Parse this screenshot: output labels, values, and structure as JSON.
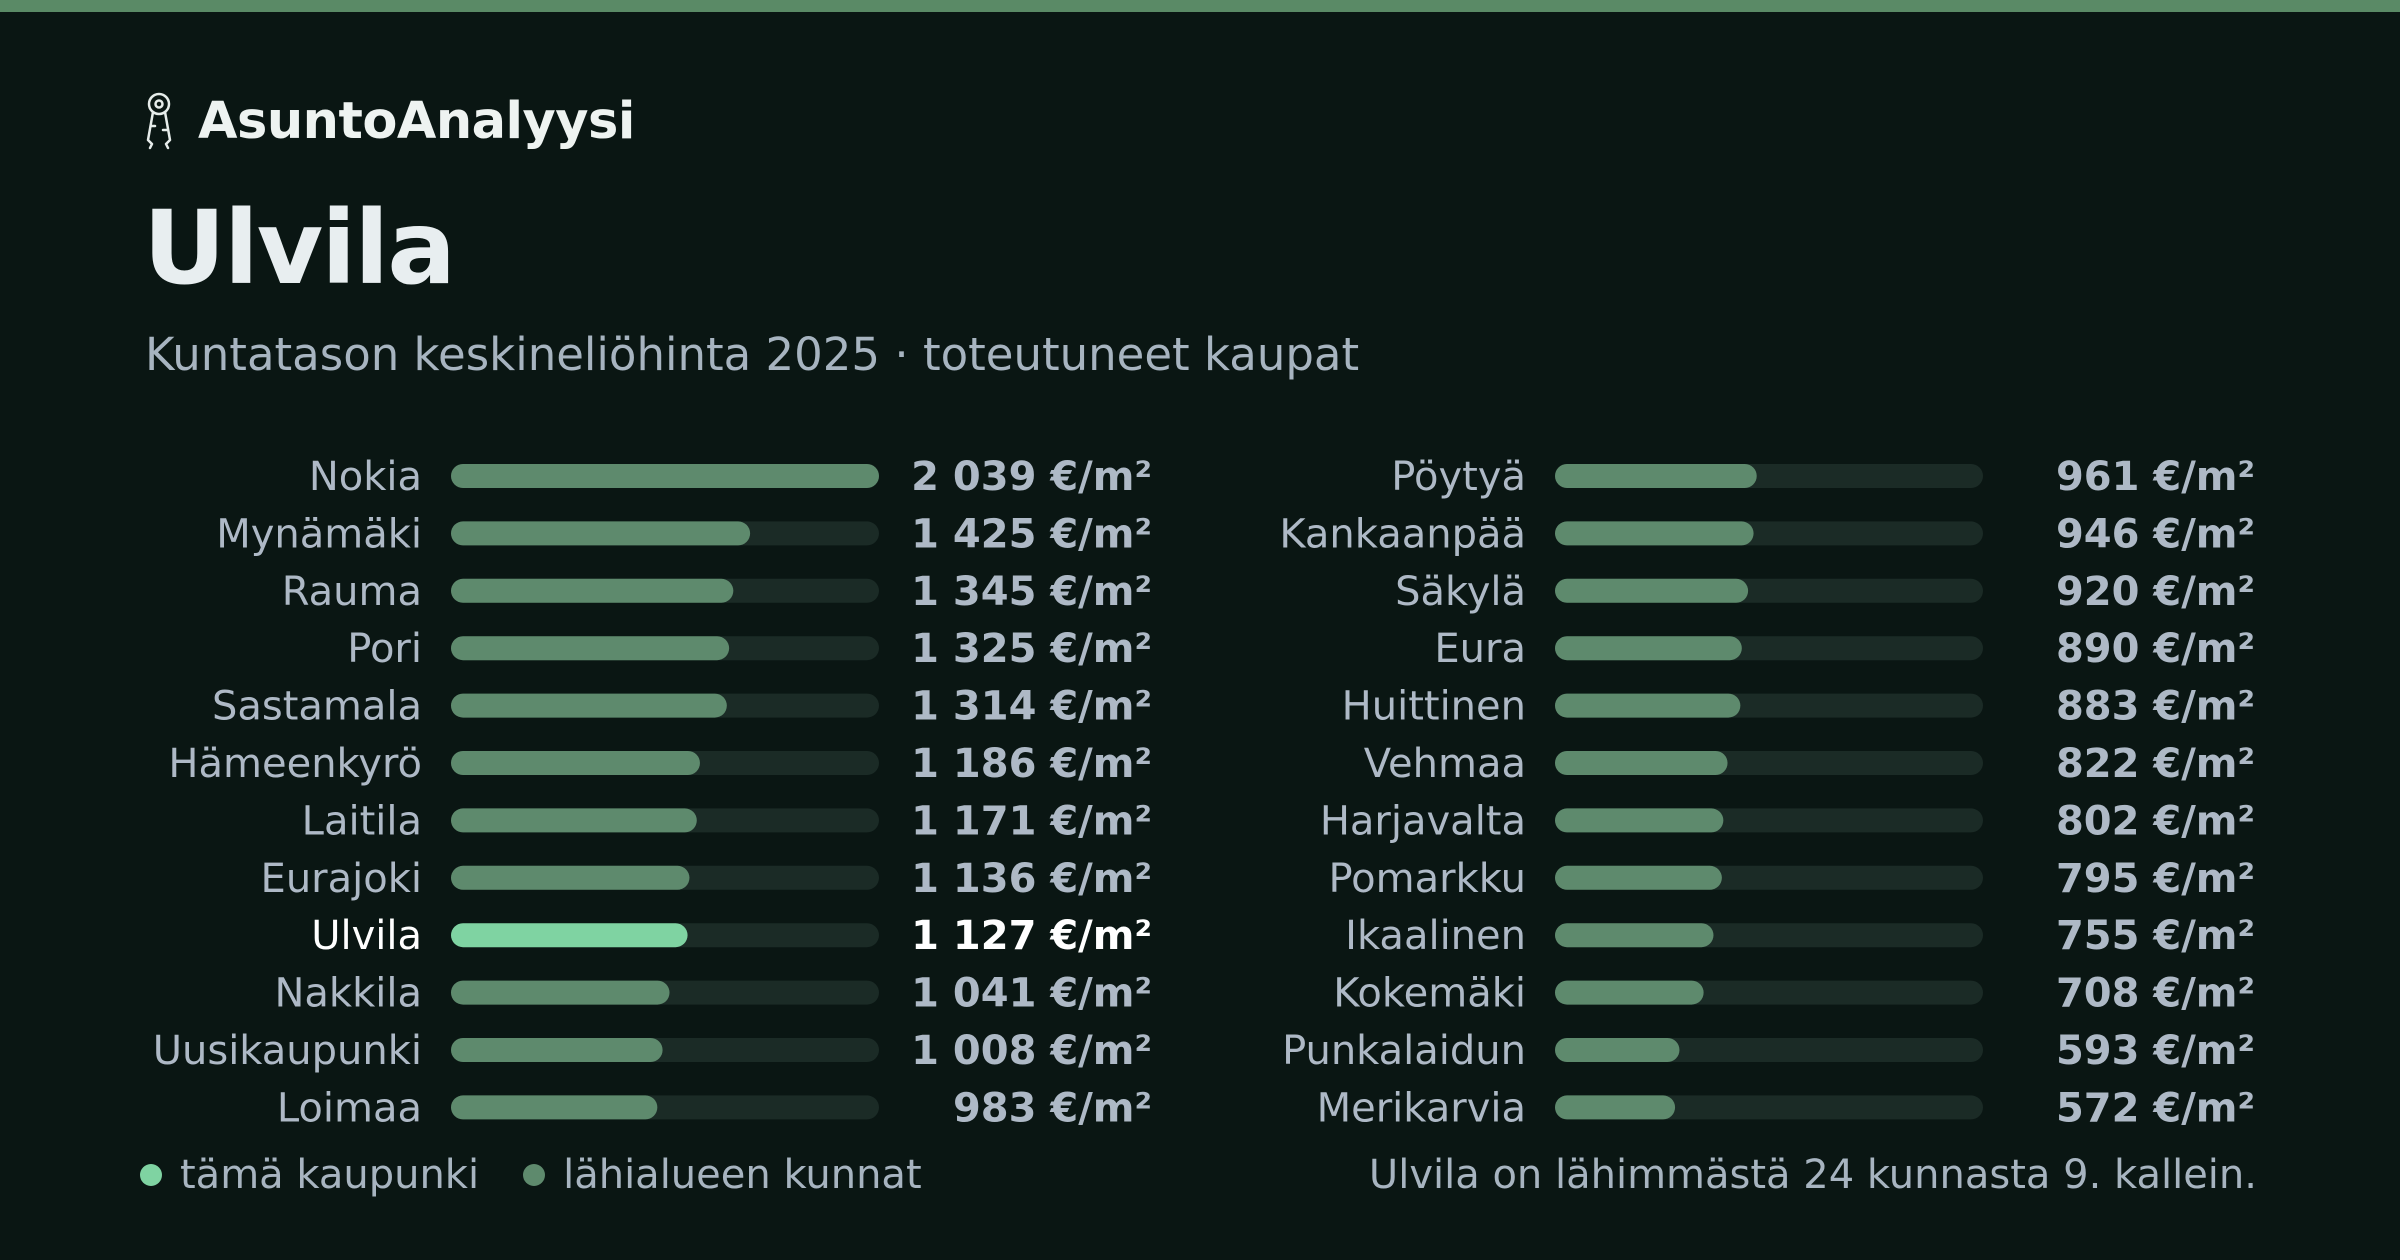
{
  "brand": {
    "name": "AsuntoAnalyysi",
    "icon": "keys-icon"
  },
  "title": "Ulvila",
  "subtitle": "Kuntatason keskineliöhinta 2025 · toteutuneet kaupat",
  "colors": {
    "highlight": "#7fd3a2",
    "bar": "#5e8a6d",
    "track": "#1b2b26",
    "label": "#aeb9c6",
    "label_highlight": "#ffffff",
    "value": "#aeb9c6",
    "value_highlight": "#ffffff"
  },
  "chart_data": {
    "type": "bar",
    "orientation": "horizontal",
    "unit": "€/m²",
    "highlight": "Ulvila",
    "xlim": [
      0,
      2039
    ],
    "categories": [
      "Nokia",
      "Mynämäki",
      "Rauma",
      "Pori",
      "Sastamala",
      "Hämeenkyrö",
      "Laitila",
      "Eurajoki",
      "Ulvila",
      "Nakkila",
      "Uusikaupunki",
      "Loimaa",
      "Pöytyä",
      "Kankaanpää",
      "Säkylä",
      "Eura",
      "Huittinen",
      "Vehmaa",
      "Harjavalta",
      "Pomarkku",
      "Ikaalinen",
      "Kokemäki",
      "Punkalaidun",
      "Merikarvia"
    ],
    "values": [
      2039,
      1425,
      1345,
      1325,
      1314,
      1186,
      1171,
      1136,
      1127,
      1041,
      1008,
      983,
      961,
      946,
      920,
      890,
      883,
      822,
      802,
      795,
      755,
      708,
      593,
      572
    ],
    "value_labels": [
      "2 039 €/m²",
      "1 425 €/m²",
      "1 345 €/m²",
      "1 325 €/m²",
      "1 314 €/m²",
      "1 186 €/m²",
      "1 171 €/m²",
      "1 136 €/m²",
      "1 127 €/m²",
      "1 041 €/m²",
      "1 008 €/m²",
      "983 €/m²",
      "961 €/m²",
      "946 €/m²",
      "920 €/m²",
      "890 €/m²",
      "883 €/m²",
      "822 €/m²",
      "802 €/m²",
      "795 €/m²",
      "755 €/m²",
      "708 €/m²",
      "593 €/m²",
      "572 €/m²"
    ]
  },
  "legend": {
    "this_city": "tämä kaupunki",
    "nearby": "lähialueen kunnat"
  },
  "note": "Ulvila on lähimmästä 24 kunnasta 9. kallein."
}
